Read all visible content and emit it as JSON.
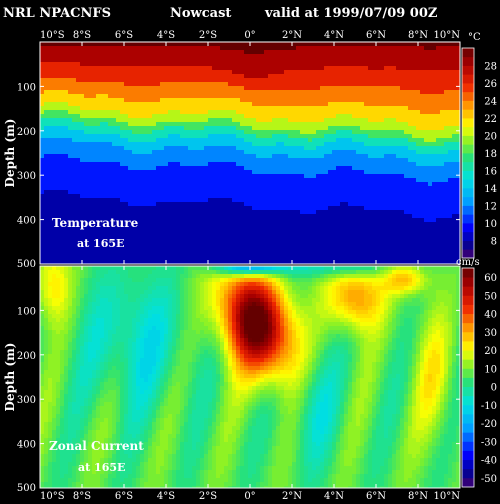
{
  "header": {
    "model": "NRL NPACNFS",
    "kind": "Nowcast",
    "valid": "valid at 1999/07/09 00Z"
  },
  "chart_data": [
    {
      "type": "heatmap",
      "label": "Temperature",
      "sublabel": "at 165E",
      "ylabel": "Depth (m)",
      "unit": "°C",
      "x_ticks": [
        "10°S",
        "8°S",
        "6°S",
        "4°S",
        "2°S",
        "0°",
        "2°N",
        "4°N",
        "6°N",
        "8°N",
        "10°N"
      ],
      "xlim": [
        -10,
        10
      ],
      "y_ticks": [
        100,
        200,
        300,
        400,
        500
      ],
      "ylim": [
        0,
        500
      ],
      "colorbar_ticks": [
        8,
        10,
        12,
        14,
        16,
        18,
        20,
        22,
        24,
        26,
        28
      ],
      "color_range": [
        6,
        30
      ]
    },
    {
      "type": "heatmap",
      "label": "Zonal Current",
      "sublabel": "at 165E",
      "ylabel": "Depth (m)",
      "unit": "cm/s",
      "x_ticks": [
        "10°S",
        "8°S",
        "6°S",
        "4°S",
        "2°S",
        "0°",
        "2°N",
        "4°N",
        "6°N",
        "8°N",
        "10°N"
      ],
      "xlim": [
        -10,
        10
      ],
      "y_ticks": [
        100,
        200,
        300,
        400,
        500
      ],
      "ylim": [
        0,
        500
      ],
      "colorbar_ticks": [
        -50,
        -40,
        -30,
        -20,
        -10,
        0,
        10,
        20,
        30,
        40,
        50,
        60
      ],
      "color_range": [
        -55,
        65
      ]
    }
  ]
}
